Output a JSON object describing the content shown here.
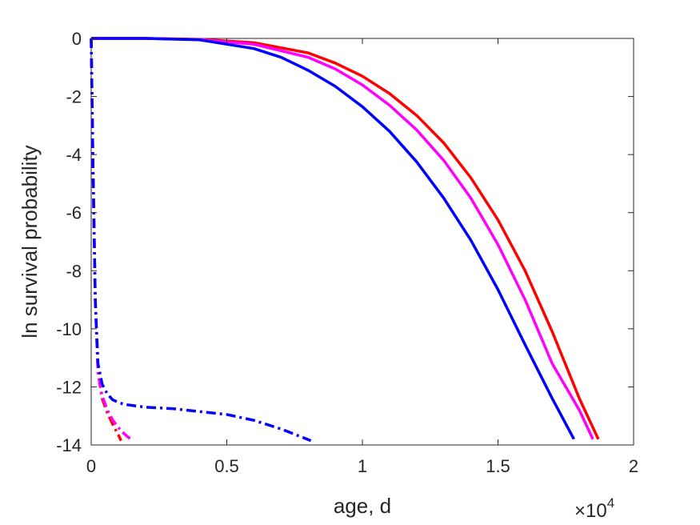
{
  "chart_data": {
    "type": "line",
    "title": "",
    "xlabel": "age, d",
    "ylabel": "ln survival probability",
    "x_exponent_label": "×10",
    "x_exponent_power": "4",
    "x_scale_factor": 10000,
    "xlim": [
      0,
      20000
    ],
    "ylim": [
      -14,
      0
    ],
    "xticks": [
      0,
      5000,
      10000,
      15000,
      20000
    ],
    "xtick_labels": [
      "0",
      "0.5",
      "1",
      "1.5",
      "2"
    ],
    "yticks": [
      0,
      -2,
      -4,
      -6,
      -8,
      -10,
      -12,
      -14
    ],
    "ytick_labels": [
      "0",
      "-2",
      "-4",
      "-6",
      "-8",
      "-10",
      "-12",
      "-14"
    ],
    "grid": false,
    "legend": "none",
    "series": [
      {
        "color": "#ff0000",
        "style": "solid",
        "x": [
          0,
          2000,
          4000,
          6000,
          8000,
          9000,
          10000,
          11000,
          12000,
          13000,
          14000,
          15000,
          16000,
          17000,
          18000,
          18700
        ],
        "y": [
          0,
          0,
          -0.03,
          -0.15,
          -0.5,
          -0.85,
          -1.3,
          -1.9,
          -2.65,
          -3.6,
          -4.8,
          -6.25,
          -8.0,
          -10.1,
          -12.4,
          -13.8
        ]
      },
      {
        "color": "#ff00ff",
        "style": "solid",
        "x": [
          0,
          2000,
          4000,
          6000,
          8000,
          9000,
          10000,
          11000,
          12000,
          13000,
          14000,
          15000,
          16000,
          17000,
          18000,
          18500
        ],
        "y": [
          0,
          0,
          -0.04,
          -0.2,
          -0.65,
          -1.05,
          -1.6,
          -2.3,
          -3.15,
          -4.2,
          -5.5,
          -7.1,
          -9.0,
          -11.2,
          -12.8,
          -13.8
        ]
      },
      {
        "color": "#0000ff",
        "style": "solid",
        "x": [
          0,
          2000,
          4000,
          6000,
          7000,
          8000,
          9000,
          10000,
          11000,
          12000,
          13000,
          14000,
          15000,
          16000,
          17000,
          17800
        ],
        "y": [
          0,
          0,
          -0.05,
          -0.35,
          -0.65,
          -1.1,
          -1.65,
          -2.35,
          -3.2,
          -4.25,
          -5.5,
          -6.95,
          -8.65,
          -10.55,
          -12.4,
          -13.8
        ]
      },
      {
        "color": "#ff0000",
        "style": "dashdot",
        "x": [
          0,
          60,
          150,
          250,
          400,
          600,
          800,
          1000,
          1100
        ],
        "y": [
          0,
          -4,
          -9,
          -11.5,
          -12.4,
          -12.9,
          -13.3,
          -13.65,
          -13.85
        ]
      },
      {
        "color": "#ff00ff",
        "style": "dashdot",
        "x": [
          0,
          60,
          150,
          250,
          400,
          600,
          800,
          1000,
          1200,
          1450
        ],
        "y": [
          0,
          -4,
          -9,
          -11.5,
          -12.3,
          -12.8,
          -13.15,
          -13.4,
          -13.6,
          -13.8
        ]
      },
      {
        "color": "#0000ff",
        "style": "dashdot",
        "x": [
          0,
          60,
          150,
          250,
          400,
          600,
          800,
          1200,
          2000,
          3000,
          4000,
          5000,
          6000,
          7000,
          8100
        ],
        "y": [
          0,
          -4,
          -9,
          -11.2,
          -11.9,
          -12.25,
          -12.45,
          -12.6,
          -12.7,
          -12.75,
          -12.85,
          -12.95,
          -13.15,
          -13.45,
          -13.85
        ]
      }
    ]
  }
}
